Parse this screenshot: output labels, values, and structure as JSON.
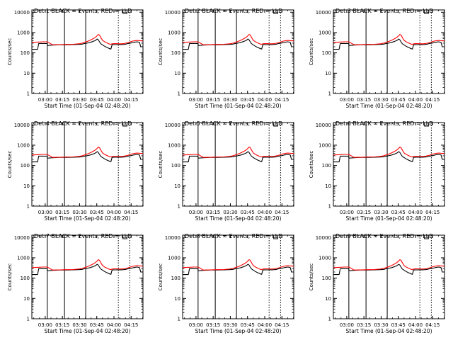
{
  "chart_data": [
    {
      "type": "line",
      "title": "Det 1  BLACK = Events, RED = LLD"
    },
    {
      "type": "line",
      "title": "Det 2  BLACK = Events, RED = LLD"
    },
    {
      "type": "line",
      "title": "Det 3  BLACK = Events, RED = LLD"
    },
    {
      "type": "line",
      "title": "Det 4  BLACK = Events, RED = LLD"
    },
    {
      "type": "line",
      "title": "Det 5  BLACK = Events, RED = LLD"
    },
    {
      "type": "line",
      "title": "Det 6  BLACK = Events, RED = LLD"
    },
    {
      "type": "line",
      "title": "Det 7  BLACK = Events, RED = LLD"
    },
    {
      "type": "line",
      "title": "Det 8  BLACK = Events, RED = LLD"
    },
    {
      "type": "line",
      "title": "Det 9  BLACK = Events, RED = LLD"
    }
  ],
  "shared": {
    "xlabel": "Start Time (01-Sep-04 02:48:20)",
    "ylabel": "Counts/sec",
    "xtick_labels": [
      "03:00",
      "03:15",
      "03:30",
      "03:45",
      "04:00",
      "04:15"
    ],
    "xtick_minutes": [
      11.67,
      26.67,
      41.67,
      56.67,
      71.67,
      86.67
    ],
    "xlim_minutes": [
      0,
      97
    ],
    "yscale": "log",
    "ylim": [
      1,
      13000
    ],
    "ytick_labels": [
      "1",
      "10",
      "100",
      "1000",
      "10000"
    ],
    "ytick_values": [
      1,
      10,
      100,
      1000,
      10000
    ],
    "solid_vlines_minutes": [
      13.5,
      28.5,
      47.0
    ],
    "dotted_vlines_minutes": [
      75.5,
      85.5
    ],
    "legend": {
      "events_color": "#000000",
      "lld_color": "#ff0000"
    },
    "series": [
      {
        "name": "Events",
        "color": "#000000",
        "x": [
          0,
          5,
          6,
          13.4,
          13.6,
          18,
          24,
          30,
          36,
          41,
          44,
          46,
          48,
          49,
          51,
          53,
          55,
          56,
          57,
          58,
          59,
          60,
          61,
          62,
          63,
          64,
          65,
          66,
          67,
          68,
          69,
          70,
          72,
          74,
          76,
          78,
          80,
          82,
          84,
          86,
          88,
          90,
          92,
          94,
          95,
          97
        ],
        "y": [
          150,
          150,
          290,
          290,
          230,
          240,
          250,
          250,
          255,
          260,
          270,
          290,
          300,
          310,
          330,
          360,
          400,
          430,
          480,
          440,
          350,
          290,
          260,
          240,
          220,
          205,
          190,
          180,
          170,
          160,
          155,
          250,
          255,
          255,
          255,
          255,
          260,
          270,
          290,
          300,
          320,
          340,
          350,
          330,
          200,
          200
        ]
      },
      {
        "name": "LLD",
        "color": "#ff0000",
        "x": [
          0,
          5,
          10,
          13.5,
          18,
          24,
          30,
          36,
          41,
          44,
          46,
          48,
          50,
          52,
          54,
          55,
          56,
          57,
          58,
          59,
          60,
          61,
          62,
          63,
          64,
          65,
          66,
          67,
          68,
          69,
          70,
          72,
          74,
          76,
          78,
          80,
          82,
          84,
          86,
          88,
          90,
          92,
          94,
          96,
          97
        ],
        "y": [
          330,
          340,
          350,
          350,
          250,
          255,
          260,
          265,
          280,
          300,
          330,
          360,
          400,
          450,
          520,
          560,
          620,
          700,
          800,
          760,
          600,
          480,
          400,
          370,
          340,
          320,
          300,
          285,
          270,
          265,
          280,
          285,
          285,
          280,
          280,
          285,
          300,
          320,
          350,
          380,
          400,
          410,
          400,
          390,
          390
        ]
      }
    ]
  }
}
